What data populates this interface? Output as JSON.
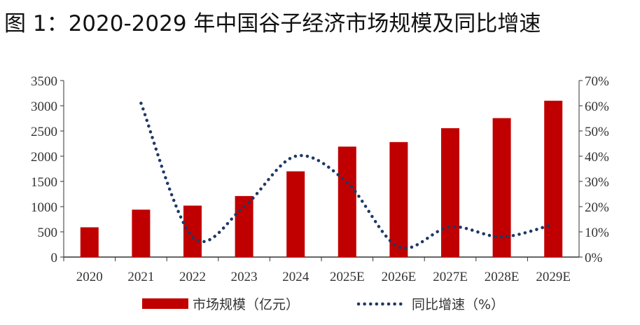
{
  "title": "图 1：2020-2029 年中国谷子经济市场规模及同比增速",
  "chart_data": {
    "type": "bar+line",
    "categories": [
      "2020",
      "2021",
      "2022",
      "2023",
      "2024",
      "2025E",
      "2026E",
      "2027E",
      "2028E",
      "2029E"
    ],
    "series": [
      {
        "name": "市场规模（亿元）",
        "type": "bar",
        "axis": "left",
        "color": "#c00000",
        "values": [
          590,
          940,
          1020,
          1210,
          1700,
          2190,
          2280,
          2555,
          2755,
          3100
        ]
      },
      {
        "name": "同比增速（%）",
        "type": "line",
        "style": "dotted",
        "axis": "right",
        "color": "#1f3864",
        "values": [
          null,
          61,
          8,
          20,
          40,
          29.5,
          4,
          12,
          8,
          13
        ]
      }
    ],
    "ylim": [
      0,
      3500
    ],
    "yticks": [
      "0",
      "500",
      "1000",
      "1500",
      "2000",
      "2500",
      "3000",
      "3500"
    ],
    "y2lim": [
      0,
      70
    ],
    "y2ticks": [
      "0%",
      "10%",
      "20%",
      "30%",
      "40%",
      "50%",
      "60%",
      "70%"
    ],
    "grid": false,
    "legend": "bottom"
  }
}
